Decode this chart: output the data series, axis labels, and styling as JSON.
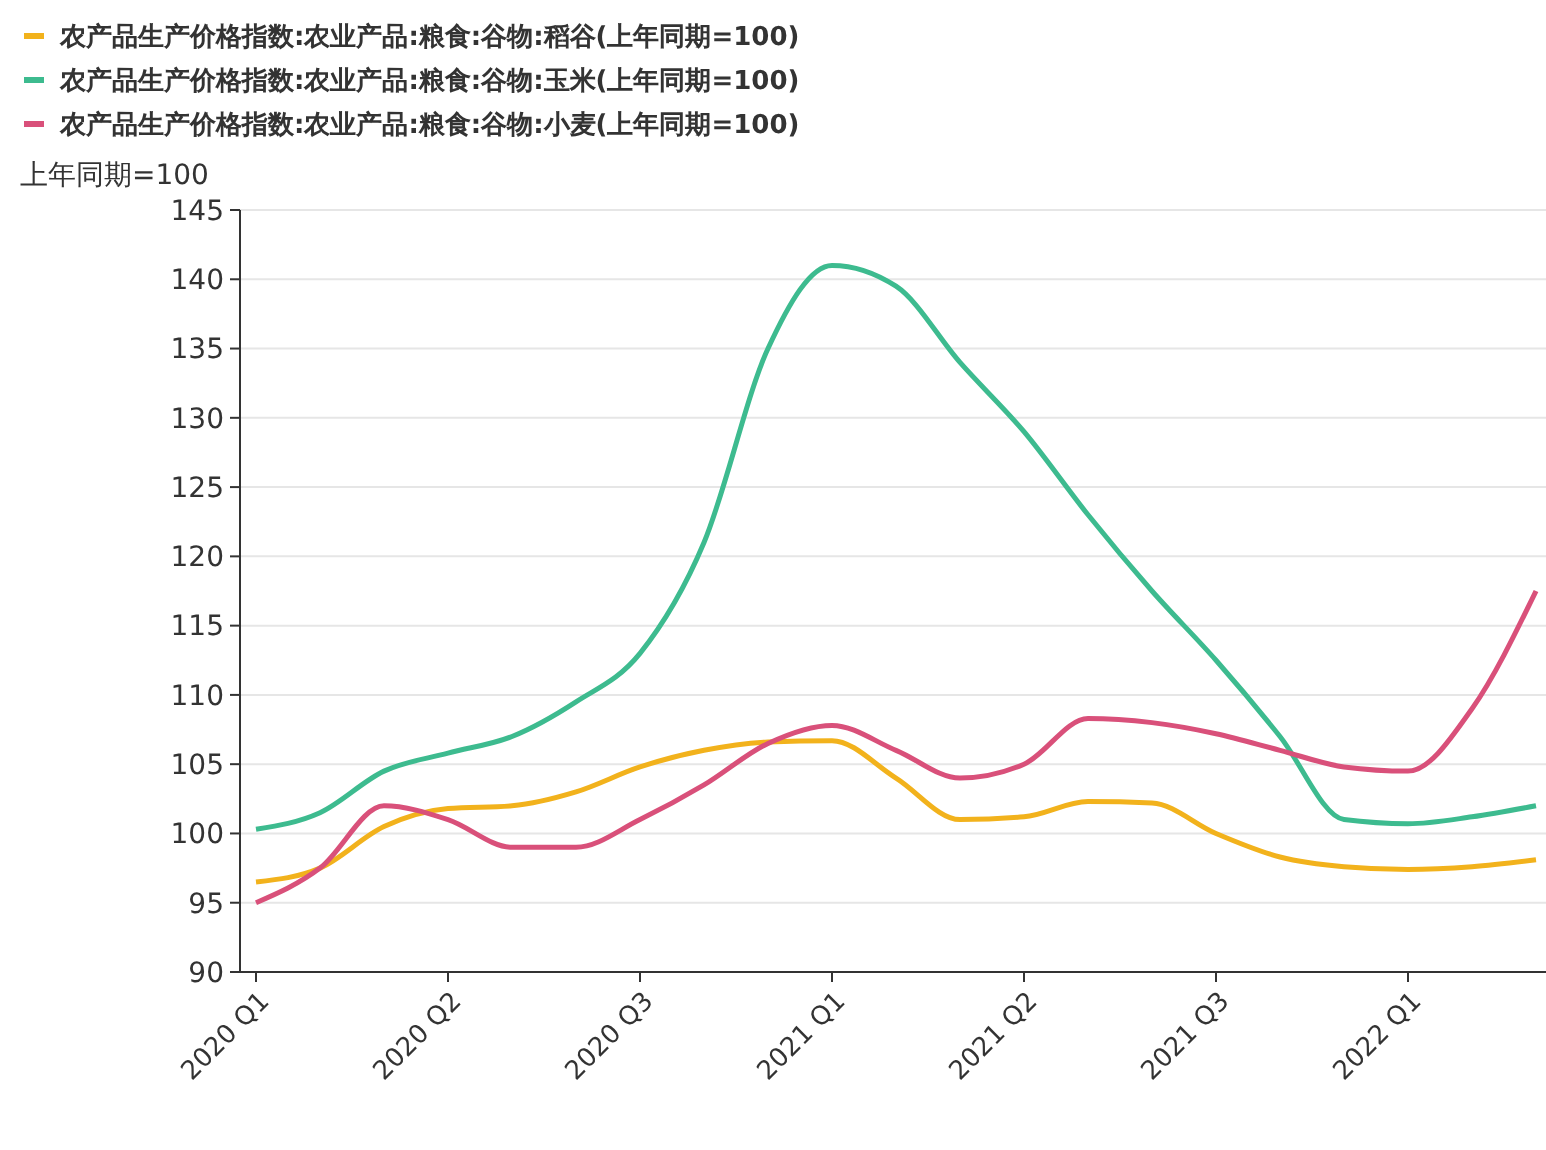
{
  "chart_data": {
    "type": "line",
    "ylabel": "上年同期=100",
    "categories": [
      "2020 Q1",
      null,
      null,
      "2020 Q2",
      null,
      null,
      "2020 Q3",
      null,
      null,
      "2021 Q1",
      null,
      null,
      "2021 Q2",
      null,
      null,
      "2021 Q3",
      null,
      null,
      "2022 Q1",
      null,
      null
    ],
    "series": [
      {
        "name": "农产品生产价格指数:农业产品:粮食:谷物:稻谷(上年同期=100)",
        "color": "#f2b21c",
        "values": [
          96.5,
          97.5,
          100.5,
          101.8,
          102,
          103,
          104.8,
          106,
          106.6,
          106.7,
          104,
          101,
          101.2,
          102.3,
          102.2,
          100,
          98.3,
          97.6,
          97.4,
          97.6,
          98.1
        ]
      },
      {
        "name": "农产品生产价格指数:农业产品:粮食:谷物:玉米(上年同期=100)",
        "color": "#3dbb8f",
        "values": [
          100.3,
          101.5,
          104.5,
          105.8,
          107,
          109.5,
          113,
          121,
          135,
          141,
          139.5,
          134,
          129,
          123,
          117.5,
          112.5,
          107,
          101,
          100.7,
          101.2,
          102
        ]
      },
      {
        "name": "农产品生产价格指数:农业产品:粮食:谷物:小麦(上年同期=100)",
        "color": "#d9507a",
        "values": [
          95,
          97.5,
          102,
          101,
          99,
          99,
          101,
          103.5,
          106.5,
          107.8,
          106,
          104,
          105,
          108.3,
          108,
          107.2,
          106,
          104.8,
          104.5,
          109,
          117.5
        ]
      }
    ],
    "ylim": [
      90,
      145
    ],
    "yticks": [
      90,
      95,
      100,
      105,
      110,
      115,
      120,
      125,
      130,
      135,
      140,
      145
    ],
    "grid": "y",
    "legend": "top left",
    "marker": "none",
    "line_style": "solid"
  }
}
